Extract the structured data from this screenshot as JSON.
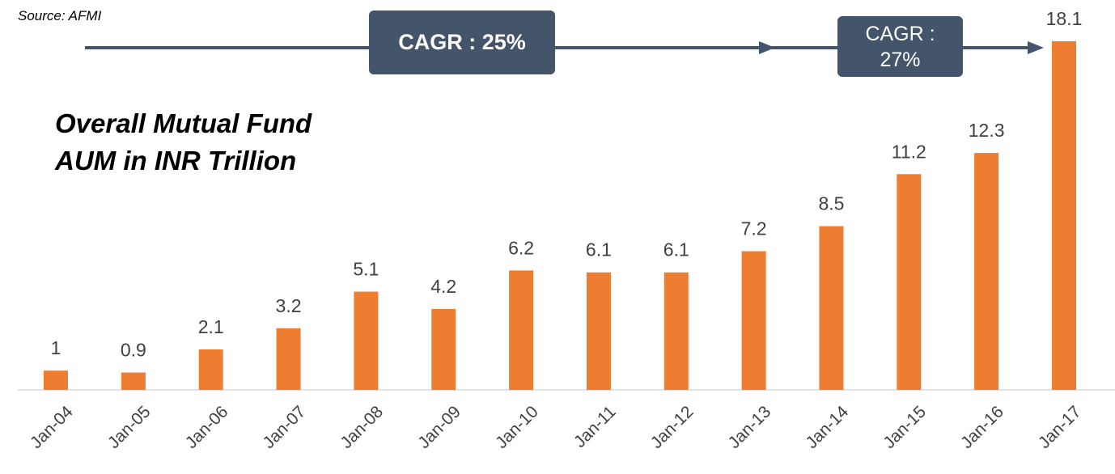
{
  "chart_data": {
    "type": "bar",
    "title": "Overall Mutual Fund AUM in INR Trillion",
    "source": "Source: AFMI",
    "annotations": [
      "CAGR : 25%",
      "CAGR : 27%"
    ],
    "categories": [
      "Jan-04",
      "Jan-05",
      "Jan-06",
      "Jan-07",
      "Jan-08",
      "Jan-09",
      "Jan-10",
      "Jan-11",
      "Jan-12",
      "Jan-13",
      "Jan-14",
      "Jan-15",
      "Jan-16",
      "Jan-17"
    ],
    "values": [
      1,
      0.9,
      2.1,
      3.2,
      5.1,
      4.2,
      6.2,
      6.1,
      6.1,
      7.2,
      8.5,
      11.2,
      12.3,
      18.1
    ],
    "color": "#ed7d31",
    "annotation_color": "#44546a"
  }
}
